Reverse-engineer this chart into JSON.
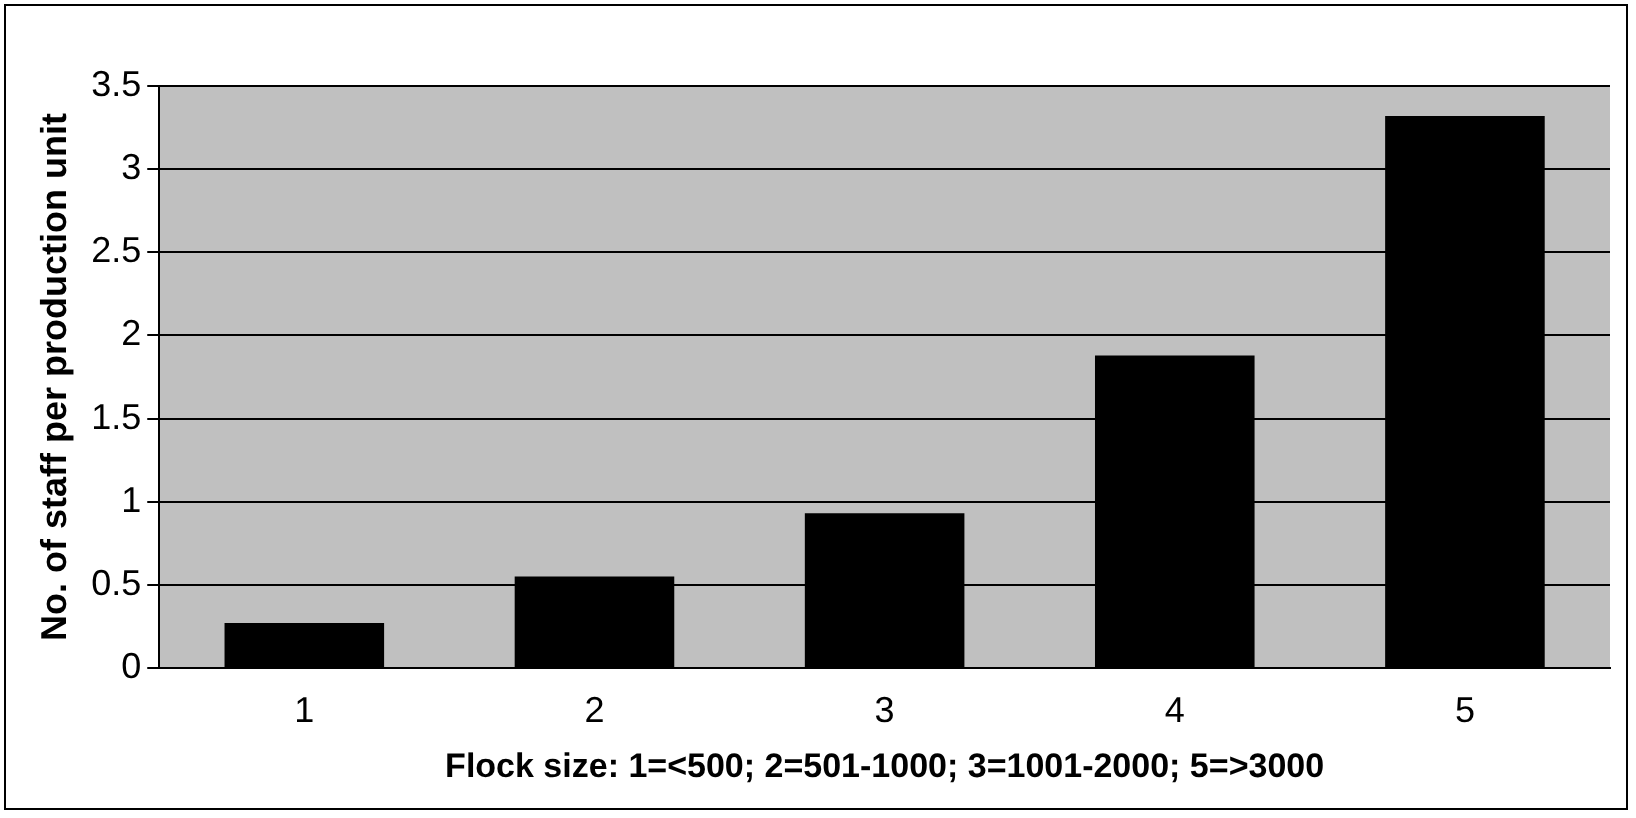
{
  "chart_data": {
    "type": "bar",
    "xlabel": "Flock size: 1=<500; 2=501-1000; 3=1001-2000; 5=>3000",
    "ylabel": "No. of staff per production unit",
    "categories": [
      "1",
      "2",
      "3",
      "4",
      "5"
    ],
    "values": [
      0.27,
      0.55,
      0.93,
      1.88,
      3.32
    ],
    "color": "#000000",
    "ylim": [
      0,
      3.5
    ],
    "yticks": [
      0,
      0.5,
      1,
      1.5,
      2,
      2.5,
      3,
      3.5
    ],
    "grid": "y"
  }
}
